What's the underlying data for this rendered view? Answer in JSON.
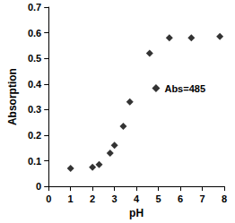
{
  "chart_data": {
    "type": "scatter",
    "x_label": "pH",
    "y_label": "Absorption",
    "series": [
      {
        "name": "Abs=485",
        "color": "#000000",
        "marker": "diamond",
        "x": [
          1,
          2,
          2.3,
          2.8,
          3,
          3.4,
          3.7,
          4.6,
          5.5,
          6.5,
          7.8
        ],
        "values": [
          0.07,
          0.075,
          0.085,
          0.13,
          0.16,
          0.235,
          0.33,
          0.52,
          0.58,
          0.58,
          0.585
        ]
      }
    ],
    "xlim": [
      0,
      8
    ],
    "xticks": [
      0,
      1,
      2,
      3,
      4,
      5,
      6,
      7,
      8
    ],
    "ylim": [
      0,
      0.7
    ],
    "yticks": [
      0,
      0.1,
      0.2,
      0.3,
      0.4,
      0.5,
      0.6,
      0.7
    ],
    "grid": false,
    "legend": "right"
  }
}
